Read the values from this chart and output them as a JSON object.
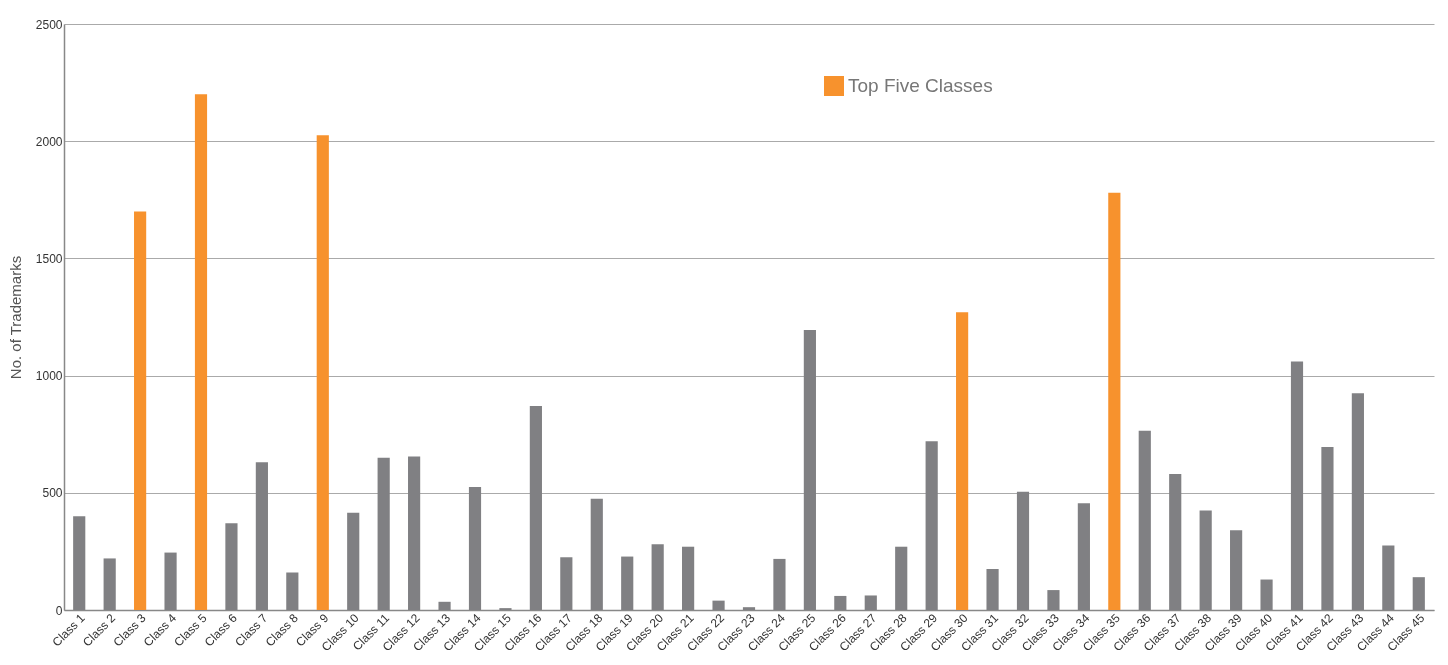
{
  "chart_data": {
    "type": "bar",
    "ylabel": "No. of Trademarks",
    "categories": [
      "Class  1",
      "Class 2",
      "Class 3",
      "Class 4",
      "Class 5",
      "Class 6",
      "Class 7",
      "Class 8",
      "Class 9",
      "Class 10",
      "Class 11",
      "Class 12",
      "Class 13",
      "Class 14",
      "Class 15",
      "Class 16",
      "Class 17",
      "Class 18",
      "Class 19",
      "Class 20",
      "Class 21",
      "Class 22",
      "Class 23",
      "Class 24",
      "Class 25",
      "Class 26",
      "Class 27",
      "Class 28",
      "Class 29",
      "Class 30",
      "Class 31",
      "Class 32",
      "Class 33",
      "Class 34",
      "Class 35",
      "Class 36",
      "Class 37",
      "Class 38",
      "Class 39",
      "Class 40",
      "Class 41",
      "Class 42",
      "Class 43",
      "Class 44",
      "Class 45"
    ],
    "series": [
      {
        "color": "#808083",
        "values": [
          400,
          220,
          null,
          245,
          null,
          370,
          630,
          160,
          null,
          415,
          650,
          655,
          35,
          525,
          8,
          870,
          225,
          475,
          228,
          280,
          270,
          40,
          12,
          218,
          1195,
          60,
          62,
          270,
          720,
          null,
          175,
          505,
          85,
          455,
          null,
          765,
          580,
          425,
          340,
          130,
          1060,
          695,
          925,
          275,
          140
        ]
      },
      {
        "name": "Top Five Classes",
        "color": "#f7922d",
        "values": [
          null,
          null,
          1700,
          null,
          2200,
          null,
          null,
          null,
          2025,
          null,
          null,
          null,
          null,
          null,
          null,
          null,
          null,
          null,
          null,
          null,
          null,
          null,
          null,
          null,
          null,
          null,
          null,
          null,
          null,
          1270,
          null,
          null,
          null,
          null,
          1780,
          null,
          null,
          null,
          null,
          null,
          null,
          null,
          null,
          null,
          null
        ]
      }
    ],
    "ylim": [
      0,
      2500
    ],
    "yticks": [
      0,
      500,
      1000,
      1500,
      2000,
      2500
    ],
    "grid": "y",
    "legend": "top right"
  }
}
